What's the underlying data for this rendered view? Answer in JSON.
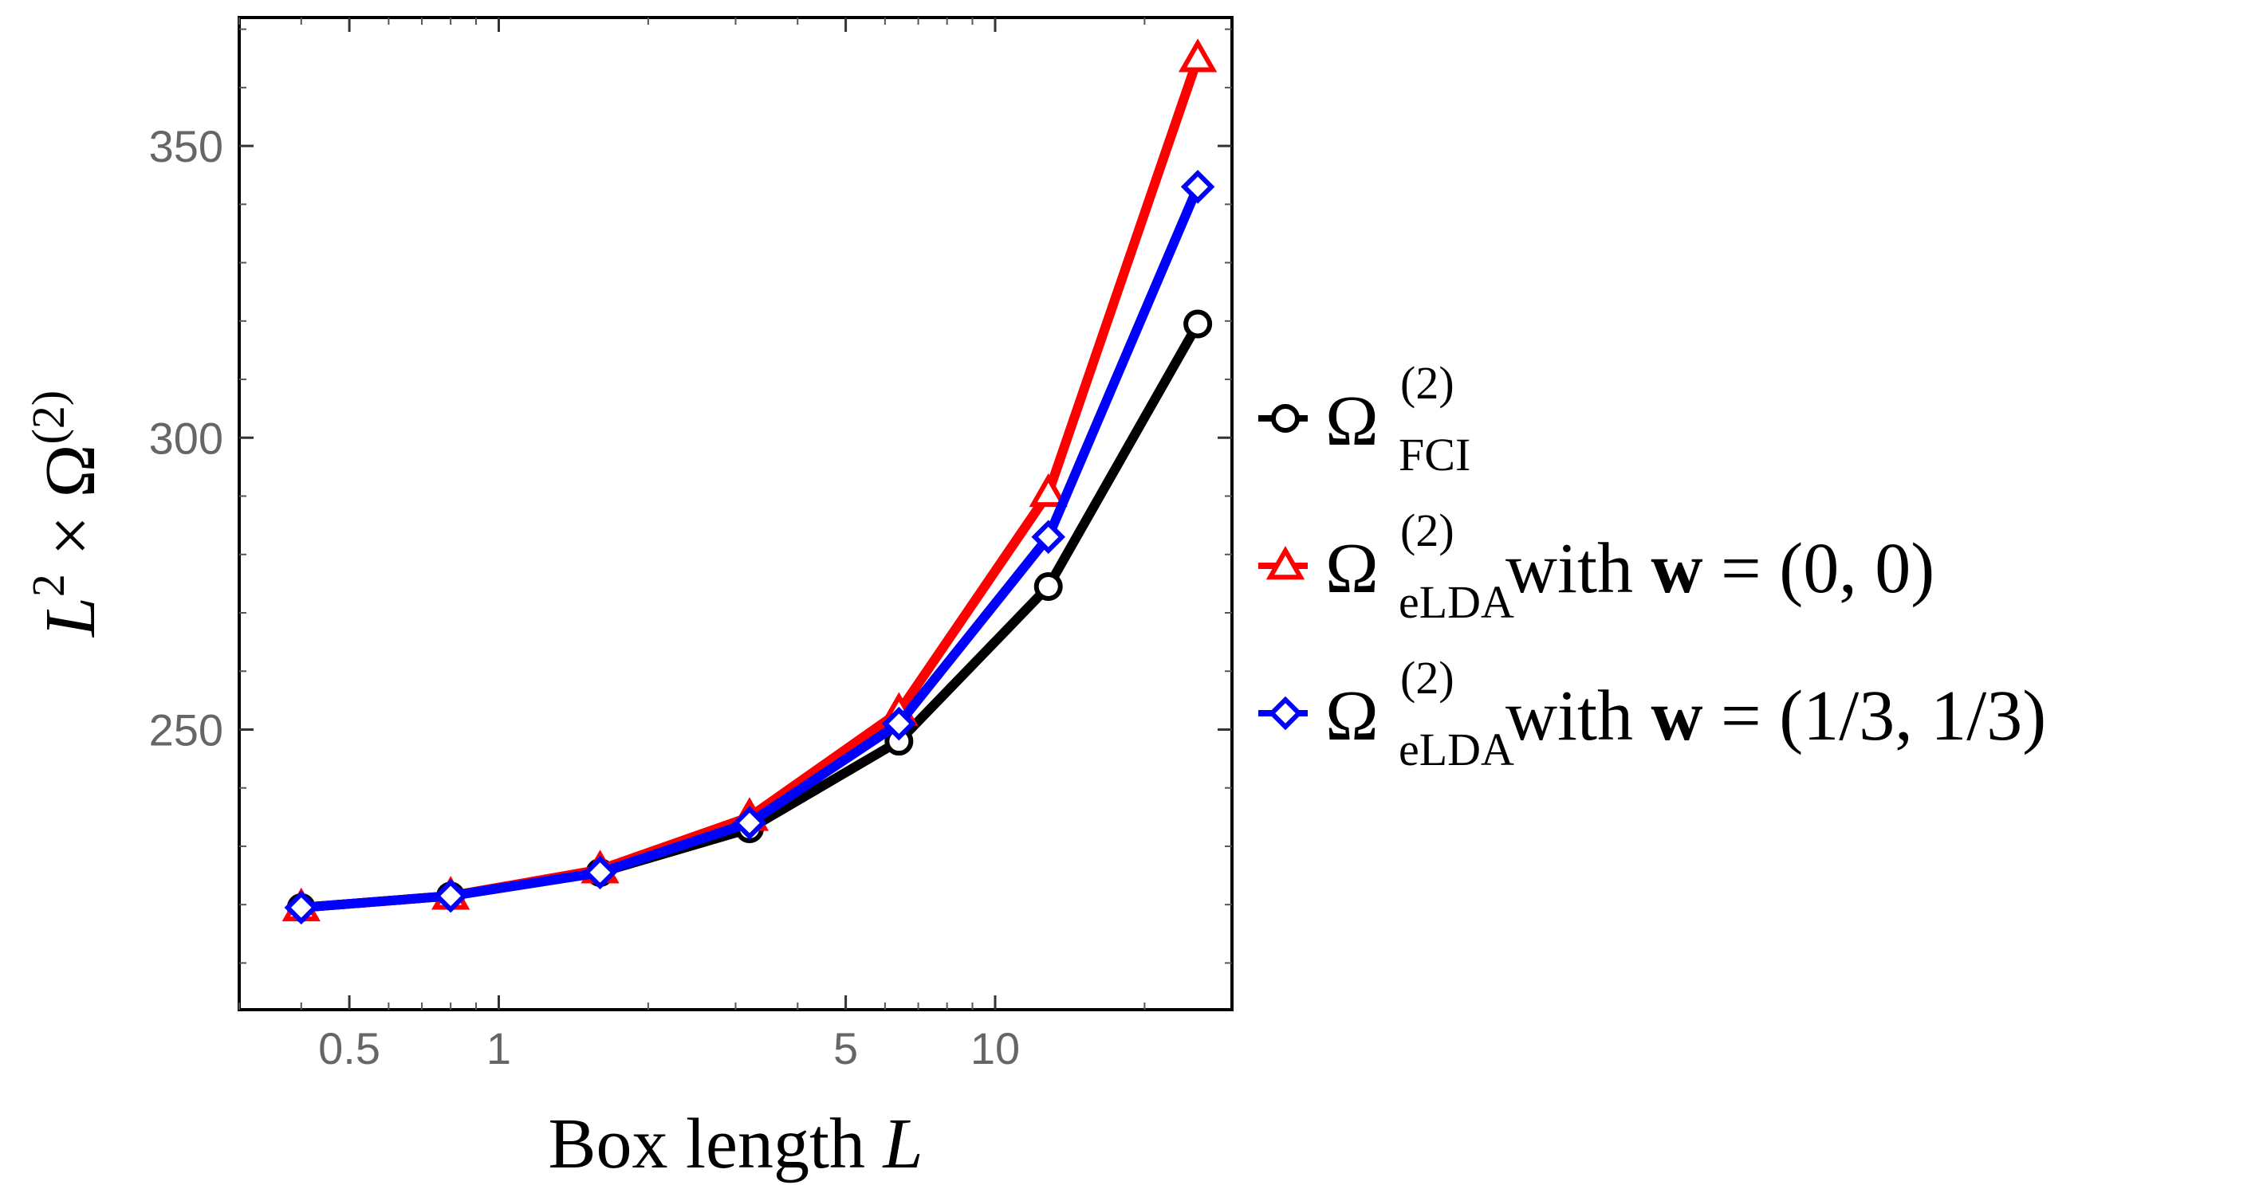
{
  "chart_data": {
    "type": "line",
    "xscale": "log",
    "x": [
      0.4,
      0.8,
      1.6,
      3.2,
      6.4,
      12.8,
      25.6
    ],
    "xlim": [
      0.3,
      30
    ],
    "ylim": [
      202,
      372
    ],
    "xticks": [
      0.5,
      1,
      5,
      10
    ],
    "xtick_labels": [
      "0.5",
      "1",
      "5",
      "10"
    ],
    "yticks": [
      250,
      300,
      350
    ],
    "ytick_labels": [
      "250",
      "300",
      "350"
    ],
    "xlabel": "Box length L",
    "ylabel": "L² × Ω(2)",
    "grid": false,
    "legend_position": "right",
    "series": [
      {
        "name": "Ω(2) FCI",
        "legend": {
          "sup": "(2)",
          "sub": "FCI",
          "suffix": ""
        },
        "color": "#000000",
        "marker": "circle",
        "values": [
          219.5,
          221.5,
          225.5,
          233.0,
          248.0,
          274.5,
          319.5
        ]
      },
      {
        "name": "Ω(2) eLDA with w = (0,0)",
        "legend": {
          "sup": "(2)",
          "sub": "eLDA",
          "suffix": " with w = (0, 0)"
        },
        "color": "#ff0000",
        "marker": "triangle",
        "values": [
          219.5,
          221.5,
          226.0,
          235.0,
          253.0,
          290.5,
          365.0
        ]
      },
      {
        "name": "Ω(2) eLDA with w = (1/3,1/3)",
        "legend": {
          "sup": "(2)",
          "sub": "eLDA",
          "suffix": " with w = (1/3, 1/3)"
        },
        "color": "#0000ff",
        "marker": "diamond",
        "values": [
          219.5,
          221.5,
          225.5,
          234.0,
          251.0,
          283.0,
          343.0
        ]
      }
    ]
  }
}
